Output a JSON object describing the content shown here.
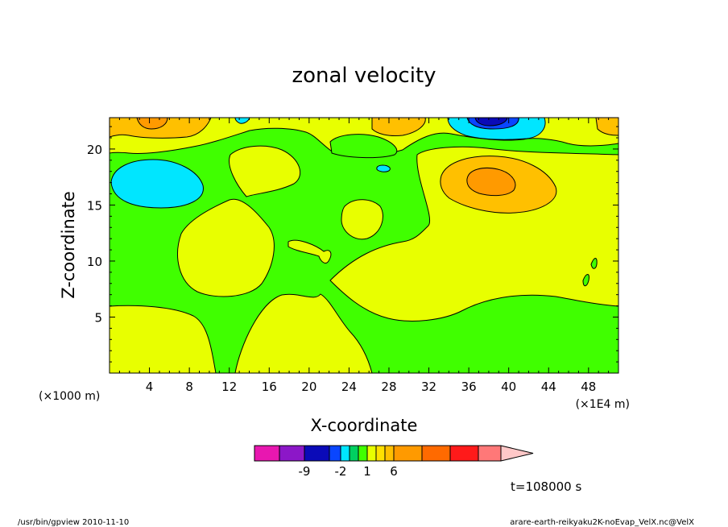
{
  "chart_data": {
    "type": "heatmap",
    "title": "zonal velocity",
    "xlabel": "X-coordinate",
    "ylabel": "Z-coordinate",
    "x_units": "(×1E4 m)",
    "y_units": "(×1000 m)",
    "xlim": [
      0,
      51
    ],
    "ylim": [
      0,
      22.8
    ],
    "x_ticks": [
      4,
      8,
      12,
      16,
      20,
      24,
      28,
      32,
      36,
      40,
      44,
      48
    ],
    "y_ticks": [
      5,
      10,
      15,
      20
    ],
    "colorbar": {
      "colors": [
        "#e817b0",
        "#8c17c8",
        "#0a0ab8",
        "#0a46ff",
        "#00e6ff",
        "#00d060",
        "#40ff00",
        "#e8ff00",
        "#ffe000",
        "#ffc000",
        "#ff9a00",
        "#ff6a00",
        "#ff1a1a",
        "#ff7878",
        "#ffc8c8"
      ],
      "tick_labels": [
        "-9",
        "-2",
        "1",
        "6"
      ]
    },
    "annotation": "t=108000 s"
  },
  "footer": {
    "left": "/usr/bin/gpview   2010-11-10",
    "right": "arare-earth-reikyaku2K-noEvap_VelX.nc@VelX"
  }
}
